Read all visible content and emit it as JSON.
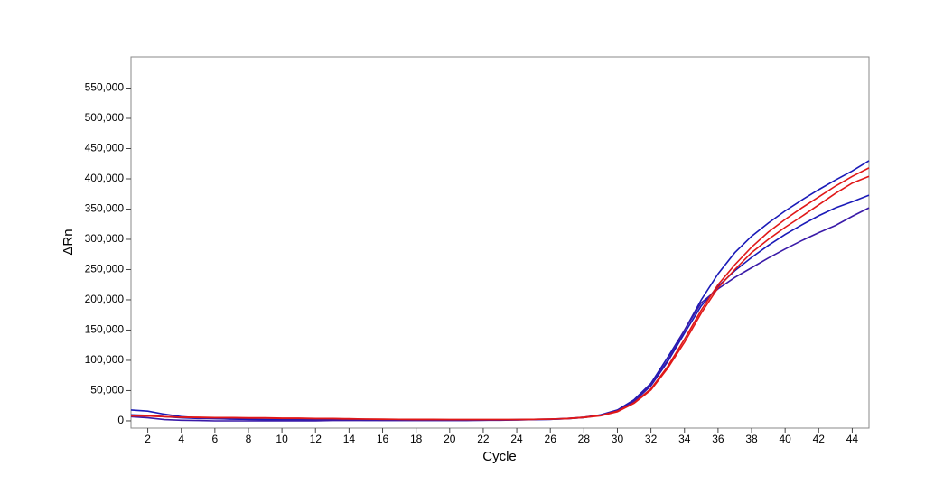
{
  "chart_data": {
    "type": "line",
    "x_label": "Cycle",
    "y_label": "ΔRn",
    "x": [
      1,
      2,
      3,
      4,
      5,
      6,
      7,
      8,
      9,
      10,
      11,
      12,
      13,
      14,
      15,
      16,
      17,
      18,
      19,
      20,
      21,
      22,
      23,
      24,
      25,
      26,
      27,
      28,
      29,
      30,
      31,
      32,
      33,
      34,
      35,
      36,
      37,
      38,
      39,
      40,
      41,
      42,
      43,
      44,
      45
    ],
    "series": [
      {
        "color": "#1a1ab8",
        "values": [
          18000,
          16000,
          11000,
          7000,
          5000,
          4000,
          3000,
          2500,
          2000,
          2000,
          2000,
          2000,
          2000,
          1500,
          1500,
          1000,
          1000,
          1000,
          1000,
          1000,
          1000,
          1500,
          1500,
          2000,
          2500,
          3000,
          4000,
          6000,
          10000,
          18000,
          35000,
          62000,
          105000,
          150000,
          200000,
          243000,
          278000,
          305000,
          327000,
          347000,
          365000,
          382000,
          398000,
          413000,
          430000
        ]
      },
      {
        "color": "#1a1ab8",
        "values": [
          10000,
          9000,
          7000,
          5000,
          4000,
          3500,
          3000,
          2500,
          2000,
          2000,
          2000,
          1500,
          1500,
          1500,
          1000,
          1000,
          1000,
          1000,
          1000,
          1000,
          1000,
          1000,
          1500,
          1500,
          2000,
          2500,
          3500,
          5500,
          9500,
          17000,
          32000,
          58000,
          98000,
          145000,
          190000,
          222000,
          248000,
          270000,
          290000,
          308000,
          324000,
          339000,
          352000,
          362000,
          373000
        ]
      },
      {
        "color": "#3a1aa8",
        "values": [
          7000,
          5000,
          2000,
          1000,
          500,
          0,
          0,
          0,
          0,
          0,
          0,
          0,
          500,
          500,
          500,
          500,
          500,
          500,
          500,
          500,
          500,
          1000,
          1000,
          1500,
          2000,
          2500,
          3500,
          5500,
          9500,
          17000,
          33000,
          60000,
          100000,
          150000,
          195000,
          218000,
          237000,
          253000,
          269000,
          284000,
          298000,
          311000,
          323000,
          338000,
          352000
        ]
      },
      {
        "color": "#e01818",
        "values": [
          9000,
          8000,
          7000,
          6000,
          6000,
          5500,
          5500,
          5000,
          5000,
          4500,
          4500,
          4000,
          4000,
          3500,
          3000,
          3000,
          2500,
          2500,
          2500,
          2000,
          2000,
          2000,
          2000,
          2000,
          2500,
          3000,
          4000,
          6000,
          9000,
          16000,
          30000,
          53000,
          90000,
          135000,
          183000,
          225000,
          258000,
          287000,
          312000,
          333000,
          352000,
          370000,
          388000,
          404000,
          418000
        ]
      },
      {
        "color": "#e01818",
        "values": [
          8000,
          8000,
          7000,
          6000,
          5500,
          5000,
          5000,
          4500,
          4500,
          4000,
          4000,
          3500,
          3500,
          3000,
          3000,
          2500,
          2500,
          2000,
          2000,
          2000,
          2000,
          2000,
          2000,
          2000,
          2500,
          3000,
          3500,
          5500,
          8500,
          15000,
          29000,
          51000,
          87000,
          130000,
          178000,
          220000,
          250000,
          278000,
          300000,
          320000,
          338000,
          357000,
          376000,
          393000,
          404000
        ]
      }
    ],
    "xlim": [
      1,
      45
    ],
    "xticks": [
      2,
      4,
      6,
      8,
      10,
      12,
      14,
      16,
      18,
      20,
      22,
      24,
      26,
      28,
      30,
      32,
      34,
      36,
      38,
      40,
      42,
      44
    ],
    "ylim": [
      -12000,
      600000
    ],
    "yticks": [
      0,
      {
        "value": 50000,
        "label": "50,000"
      },
      {
        "value": 100000,
        "label": "100,000"
      },
      {
        "value": 150000,
        "label": "150,000"
      },
      {
        "value": 200000,
        "label": "200,000"
      },
      {
        "value": 250000,
        "label": "250,000"
      },
      {
        "value": 300000,
        "label": "300,000"
      },
      {
        "value": 350000,
        "label": "350,000"
      },
      {
        "value": 400000,
        "label": "400,000"
      },
      {
        "value": 450000,
        "label": "450,000"
      },
      {
        "value": 500000,
        "label": "500,000"
      },
      {
        "value": 550000,
        "label": "550,000"
      },
      {
        "value": {
          "v": 0
        },
        "label": ""
      }
    ],
    "grid": false
  }
}
